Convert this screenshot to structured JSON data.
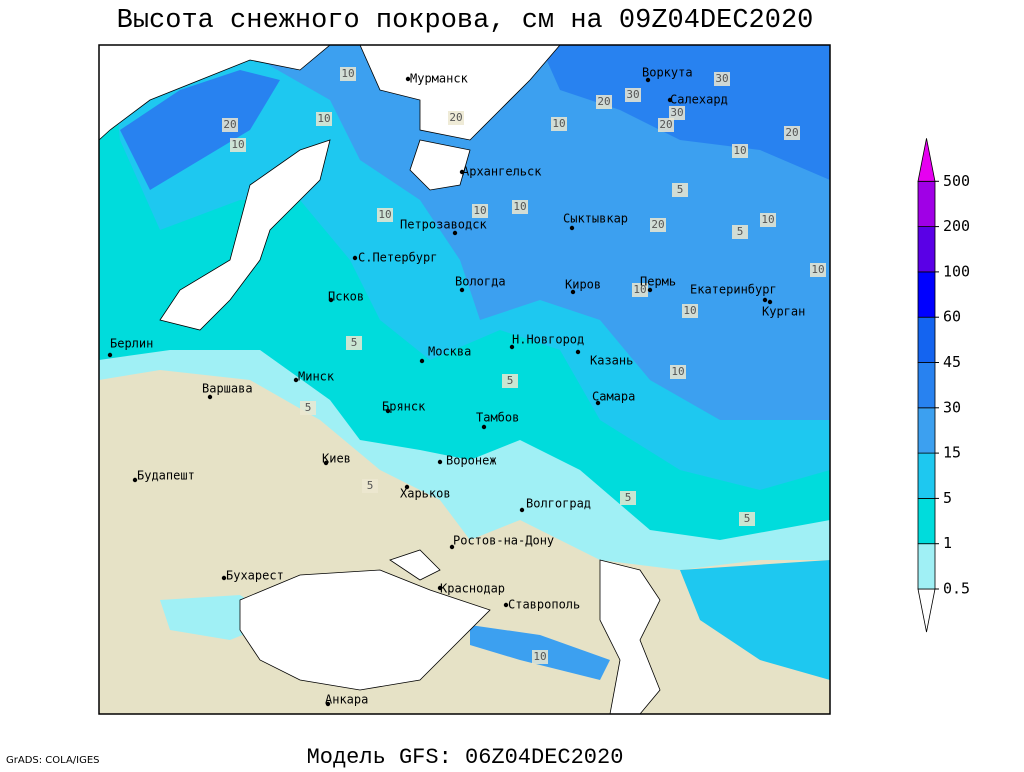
{
  "header": {
    "title": "Высота снежного покрова, см на 09Z04DEC2020"
  },
  "footer": {
    "model": "Модель GFS: 06Z04DEC2020",
    "credit": "GrADS: COLA/IGES"
  },
  "legend": {
    "levels": [
      0.5,
      1,
      5,
      15,
      30,
      45,
      60,
      100,
      200,
      500
    ],
    "colors": [
      "#ffffff",
      "#a0f0f5",
      "#00dcdc",
      "#1ec8f0",
      "#3ca0f0",
      "#2882f0",
      "#1464f0",
      "#0000ff",
      "#5a00e6",
      "#a000e6",
      "#e600f0"
    ]
  },
  "cities": [
    "Мурманск",
    "Воркута",
    "Салехард",
    "Архангельск",
    "Сыктывкар",
    "Петрозаводск",
    "С.Петербург",
    "Вологда",
    "Киров",
    "Пермь",
    "Екатеринбург",
    "Курган",
    "Псков",
    "Н.Новгород",
    "Казань",
    "Москва",
    "Берлин",
    "Минск",
    "Варшава",
    "Брянск",
    "Тамбов",
    "Самара",
    "Киев",
    "Воронеж",
    "Харьков",
    "Волгоград",
    "Будапешт",
    "Ростов-на-Дону",
    "Бухарест",
    "Краснодар",
    "Ставрополь",
    "Анкара"
  ],
  "contour_labels": [
    10,
    30,
    20,
    30,
    20,
    30,
    20,
    20,
    10,
    20,
    10,
    10,
    10,
    5,
    10,
    20,
    5,
    10,
    10,
    10,
    5,
    10,
    10,
    10,
    5,
    10,
    5,
    5,
    5,
    5,
    10
  ]
}
